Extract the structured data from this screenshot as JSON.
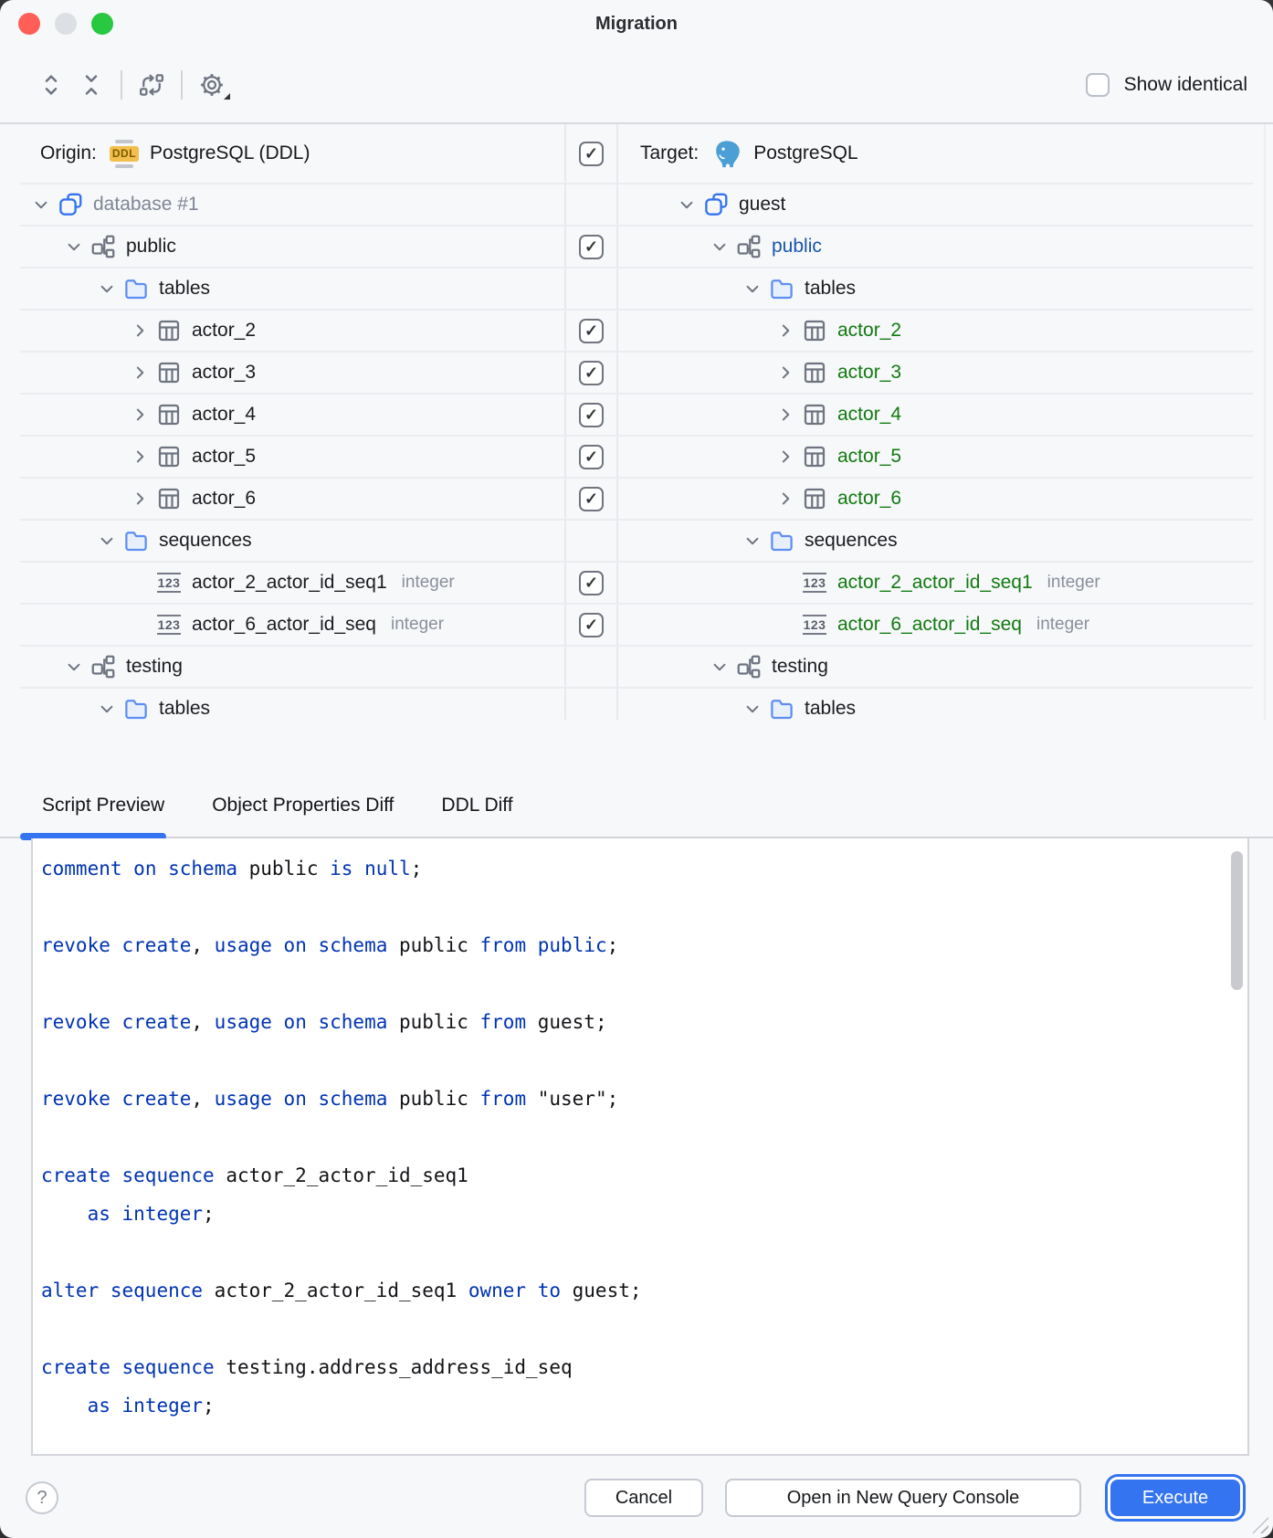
{
  "window": {
    "title": "Migration"
  },
  "toolbar": {
    "show_identical": "Show identical"
  },
  "tree": {
    "origin_header": {
      "label": "Origin:",
      "icon_text": "DDL",
      "db": "PostgreSQL (DDL)"
    },
    "target_header": {
      "label": "Target:",
      "db": "PostgreSQL"
    },
    "header_checked": true,
    "rows": [
      {
        "left": {
          "indent": 0,
          "chev": "down",
          "icon": "db",
          "label": "database #1",
          "cls": "muted"
        },
        "check": null,
        "right": {
          "indent": 0,
          "chev": "down",
          "icon": "db",
          "label": "guest",
          "cls": ""
        }
      },
      {
        "left": {
          "indent": 1,
          "chev": "down",
          "icon": "schema",
          "label": "public",
          "cls": ""
        },
        "check": true,
        "right": {
          "indent": 1,
          "chev": "down",
          "icon": "schema",
          "label": "public",
          "cls": "mod"
        }
      },
      {
        "left": {
          "indent": 2,
          "chev": "down",
          "icon": "folder",
          "label": "tables",
          "cls": ""
        },
        "check": null,
        "right": {
          "indent": 2,
          "chev": "down",
          "icon": "folder",
          "label": "tables",
          "cls": ""
        }
      },
      {
        "left": {
          "indent": 3,
          "chev": "right",
          "icon": "table",
          "label": "actor_2",
          "cls": ""
        },
        "check": true,
        "right": {
          "indent": 3,
          "chev": "right",
          "icon": "table",
          "label": "actor_2",
          "cls": "new"
        }
      },
      {
        "left": {
          "indent": 3,
          "chev": "right",
          "icon": "table",
          "label": "actor_3",
          "cls": ""
        },
        "check": true,
        "right": {
          "indent": 3,
          "chev": "right",
          "icon": "table",
          "label": "actor_3",
          "cls": "new"
        }
      },
      {
        "left": {
          "indent": 3,
          "chev": "right",
          "icon": "table",
          "label": "actor_4",
          "cls": ""
        },
        "check": true,
        "right": {
          "indent": 3,
          "chev": "right",
          "icon": "table",
          "label": "actor_4",
          "cls": "new"
        }
      },
      {
        "left": {
          "indent": 3,
          "chev": "right",
          "icon": "table",
          "label": "actor_5",
          "cls": ""
        },
        "check": true,
        "right": {
          "indent": 3,
          "chev": "right",
          "icon": "table",
          "label": "actor_5",
          "cls": "new"
        }
      },
      {
        "left": {
          "indent": 3,
          "chev": "right",
          "icon": "table",
          "label": "actor_6",
          "cls": ""
        },
        "check": true,
        "right": {
          "indent": 3,
          "chev": "right",
          "icon": "table",
          "label": "actor_6",
          "cls": "new"
        }
      },
      {
        "left": {
          "indent": 2,
          "chev": "down",
          "icon": "folder",
          "label": "sequences",
          "cls": ""
        },
        "check": null,
        "right": {
          "indent": 2,
          "chev": "down",
          "icon": "folder",
          "label": "sequences",
          "cls": ""
        }
      },
      {
        "left": {
          "indent": 3,
          "chev": null,
          "icon": "seq",
          "label": "actor_2_actor_id_seq1",
          "cls": "",
          "type": "integer"
        },
        "check": true,
        "right": {
          "indent": 3,
          "chev": null,
          "icon": "seq",
          "label": "actor_2_actor_id_seq1",
          "cls": "new",
          "type": "integer"
        }
      },
      {
        "left": {
          "indent": 3,
          "chev": null,
          "icon": "seq",
          "label": "actor_6_actor_id_seq",
          "cls": "",
          "type": "integer"
        },
        "check": true,
        "right": {
          "indent": 3,
          "chev": null,
          "icon": "seq",
          "label": "actor_6_actor_id_seq",
          "cls": "new",
          "type": "integer"
        }
      },
      {
        "left": {
          "indent": 1,
          "chev": "down",
          "icon": "schema",
          "label": "testing",
          "cls": ""
        },
        "check": null,
        "right": {
          "indent": 1,
          "chev": "down",
          "icon": "schema",
          "label": "testing",
          "cls": ""
        }
      },
      {
        "left": {
          "indent": 2,
          "chev": "down",
          "icon": "folder",
          "label": "tables",
          "cls": ""
        },
        "check": null,
        "right": {
          "indent": 2,
          "chev": "down",
          "icon": "folder",
          "label": "tables",
          "cls": ""
        }
      }
    ]
  },
  "tabs": [
    {
      "label": "Script Preview",
      "active": true
    },
    {
      "label": "Object Properties Diff",
      "active": false
    },
    {
      "label": "DDL Diff",
      "active": false
    }
  ],
  "code": {
    "lines": [
      [
        [
          "k",
          "comment"
        ],
        [
          "d",
          " "
        ],
        [
          "k",
          "on"
        ],
        [
          "d",
          " "
        ],
        [
          "k",
          "schema"
        ],
        [
          "d",
          " public "
        ],
        [
          "k",
          "is"
        ],
        [
          "d",
          " "
        ],
        [
          "k",
          "null"
        ],
        [
          "d",
          ";"
        ]
      ],
      [],
      [
        [
          "k",
          "revoke"
        ],
        [
          "d",
          " "
        ],
        [
          "k",
          "create"
        ],
        [
          "d",
          ", "
        ],
        [
          "k",
          "usage"
        ],
        [
          "d",
          " "
        ],
        [
          "k",
          "on"
        ],
        [
          "d",
          " "
        ],
        [
          "k",
          "schema"
        ],
        [
          "d",
          " public "
        ],
        [
          "k",
          "from"
        ],
        [
          "d",
          " "
        ],
        [
          "k",
          "public"
        ],
        [
          "d",
          ";"
        ]
      ],
      [],
      [
        [
          "k",
          "revoke"
        ],
        [
          "d",
          " "
        ],
        [
          "k",
          "create"
        ],
        [
          "d",
          ", "
        ],
        [
          "k",
          "usage"
        ],
        [
          "d",
          " "
        ],
        [
          "k",
          "on"
        ],
        [
          "d",
          " "
        ],
        [
          "k",
          "schema"
        ],
        [
          "d",
          " public "
        ],
        [
          "k",
          "from"
        ],
        [
          "d",
          " guest;"
        ]
      ],
      [],
      [
        [
          "k",
          "revoke"
        ],
        [
          "d",
          " "
        ],
        [
          "k",
          "create"
        ],
        [
          "d",
          ", "
        ],
        [
          "k",
          "usage"
        ],
        [
          "d",
          " "
        ],
        [
          "k",
          "on"
        ],
        [
          "d",
          " "
        ],
        [
          "k",
          "schema"
        ],
        [
          "d",
          " public "
        ],
        [
          "k",
          "from"
        ],
        [
          "d",
          " \"user\";"
        ]
      ],
      [],
      [
        [
          "k",
          "create"
        ],
        [
          "d",
          " "
        ],
        [
          "k",
          "sequence"
        ],
        [
          "d",
          " actor_2_actor_id_seq1"
        ]
      ],
      [
        [
          "d",
          "    "
        ],
        [
          "k",
          "as"
        ],
        [
          "d",
          " "
        ],
        [
          "k",
          "integer"
        ],
        [
          "d",
          ";"
        ]
      ],
      [],
      [
        [
          "k",
          "alter"
        ],
        [
          "d",
          " "
        ],
        [
          "k",
          "sequence"
        ],
        [
          "d",
          " actor_2_actor_id_seq1 "
        ],
        [
          "k",
          "owner"
        ],
        [
          "d",
          " "
        ],
        [
          "k",
          "to"
        ],
        [
          "d",
          " guest;"
        ]
      ],
      [],
      [
        [
          "k",
          "create"
        ],
        [
          "d",
          " "
        ],
        [
          "k",
          "sequence"
        ],
        [
          "d",
          " testing.address_address_id_seq"
        ]
      ],
      [
        [
          "d",
          "    "
        ],
        [
          "k",
          "as"
        ],
        [
          "d",
          " "
        ],
        [
          "k",
          "integer"
        ],
        [
          "d",
          ";"
        ]
      ]
    ]
  },
  "footer": {
    "help": "?",
    "cancel": "Cancel",
    "open_console": "Open in New Query Console",
    "execute": "Execute"
  }
}
